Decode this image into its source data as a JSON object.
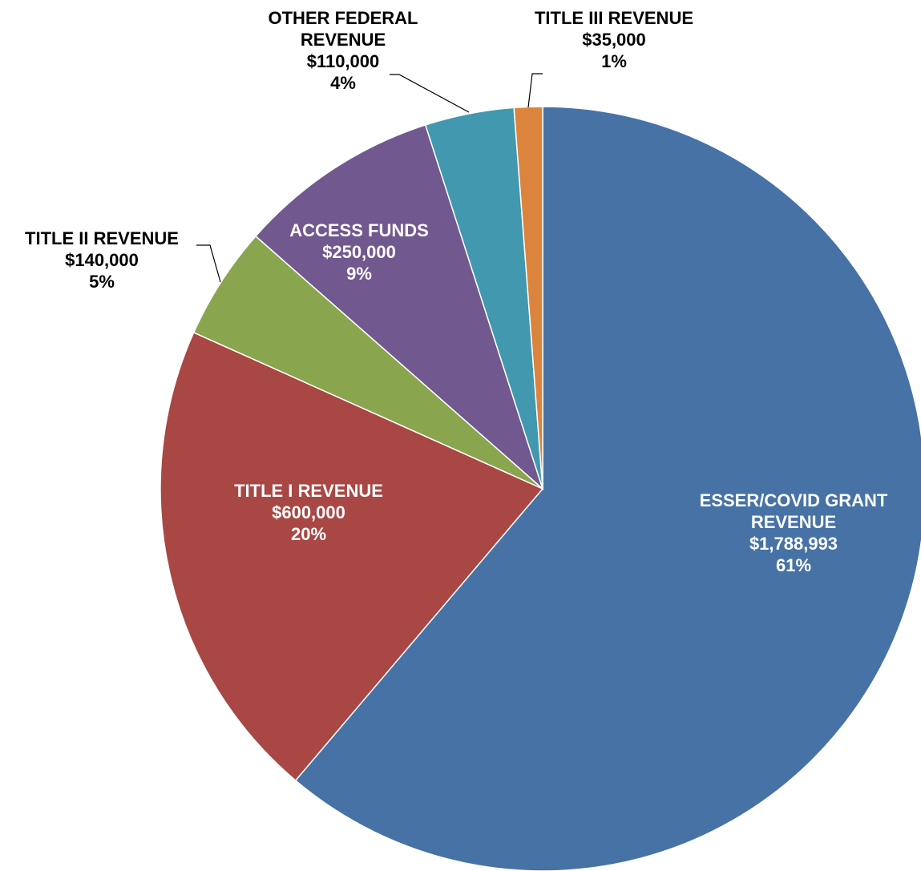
{
  "chart_data": {
    "type": "pie",
    "slices": [
      {
        "label": "ESSER/COVID GRANT REVENUE",
        "label_lines": [
          "ESSER/COVID GRANT",
          "REVENUE"
        ],
        "value": 1788993,
        "value_text": "$1,788,993",
        "percent_text": "61%",
        "color": "#4672A6",
        "label_position": "inside"
      },
      {
        "label": "TITLE I REVENUE",
        "label_lines": [
          "TITLE I REVENUE"
        ],
        "value": 600000,
        "value_text": "$600,000",
        "percent_text": "20%",
        "color": "#A84744",
        "label_position": "inside"
      },
      {
        "label": "TITLE II REVENUE",
        "label_lines": [
          "TITLE II REVENUE"
        ],
        "value": 140000,
        "value_text": "$140,000",
        "percent_text": "5%",
        "color": "#89A54E",
        "label_position": "outside"
      },
      {
        "label": "ACCESS FUNDS",
        "label_lines": [
          "ACCESS FUNDS"
        ],
        "value": 250000,
        "value_text": "$250,000",
        "percent_text": "9%",
        "color": "#71588F",
        "label_position": "inside"
      },
      {
        "label": "OTHER FEDERAL REVENUE",
        "label_lines": [
          "OTHER FEDERAL",
          "REVENUE"
        ],
        "value": 110000,
        "value_text": "$110,000",
        "percent_text": "4%",
        "color": "#4198AF",
        "label_position": "outside"
      },
      {
        "label": "TITLE III REVENUE",
        "label_lines": [
          "TITLE III REVENUE"
        ],
        "value": 35000,
        "value_text": "$35,000",
        "percent_text": "1%",
        "color": "#DB843D",
        "label_position": "outside"
      }
    ],
    "start_angle": "12 o'clock",
    "direction": "clockwise",
    "legend": "none"
  }
}
